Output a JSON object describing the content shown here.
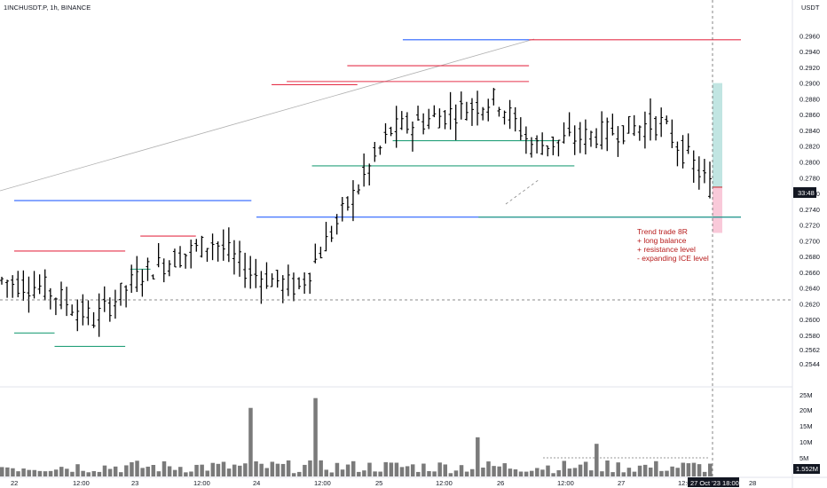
{
  "header": {
    "symbol": "1INCHUSDT.P, 1h, BINANCE",
    "currency": "USDT"
  },
  "badges": {
    "price": "33:48",
    "volume": "1.552M",
    "time": "27 Oct '23  18:00"
  },
  "annotation": [
    "Trend trade 8R",
    "+ long balance",
    "+ resistance level",
    "- expanding ICE level"
  ],
  "colors": {
    "resistance": "#e5334b",
    "support": "#26a17b",
    "trend": "#2962ff",
    "bar": "#000000",
    "volume": "#7a7a7a",
    "target_zone": "#b2dfdb",
    "stop_zone": "#f8bbd0"
  },
  "chart_data": {
    "type": "ohlc",
    "ylim": [
      0.2544,
      0.2975
    ],
    "y_ticks": [
      "0.2960",
      "0.2940",
      "0.2920",
      "0.2900",
      "0.2880",
      "0.2860",
      "0.2840",
      "0.2820",
      "0.2800",
      "0.2780",
      "0.2760",
      "0.2740",
      "0.2720",
      "0.2700",
      "0.2680",
      "0.2660",
      "0.2640",
      "0.2620",
      "0.2600",
      "0.2580",
      "0.2562",
      "0.2544"
    ],
    "x_ticks": [
      "22",
      "12:00",
      "23",
      "12:00",
      "24",
      "12:00",
      "25",
      "12:00",
      "26",
      "12:00",
      "27",
      "12:00",
      "28"
    ],
    "volume_ticks": [
      "25M",
      "20M",
      "15M",
      "10M",
      "5M"
    ],
    "levels": [
      {
        "kind": "resistance",
        "price": 0.2955,
        "from": "26 06:00",
        "to": "28 00:00"
      },
      {
        "kind": "resistance",
        "price": 0.2922,
        "from": "24 18:00",
        "to": "26 06:00"
      },
      {
        "kind": "resistance",
        "price": 0.2902,
        "from": "24 06:00",
        "to": "26 06:00"
      },
      {
        "kind": "resistance",
        "price": 0.2898,
        "from": "24 03:00",
        "to": "24 20:00"
      },
      {
        "kind": "resistance",
        "price": 0.2706,
        "from": "23 01:00",
        "to": "23 12:00"
      },
      {
        "kind": "resistance",
        "price": 0.2687,
        "from": "22 00:00",
        "to": "22 22:00"
      },
      {
        "kind": "trend_resistance",
        "price": 0.2955,
        "from": "25 05:00",
        "to": "26 06:00"
      },
      {
        "kind": "trend_resistance",
        "price": 0.2751,
        "from": "22 00:00",
        "to": "22 08:00"
      },
      {
        "kind": "trend_resistance",
        "price": 0.2751,
        "from": "22 08:00",
        "to": "23 23:00"
      },
      {
        "kind": "trend_resistance",
        "price": 0.273,
        "from": "24 00:00",
        "to": "28 00:00"
      },
      {
        "kind": "support",
        "price": 0.2827,
        "from": "25 03:00",
        "to": "26 12:00"
      },
      {
        "kind": "support",
        "price": 0.2795,
        "from": "24 11:00",
        "to": "26 15:00"
      },
      {
        "kind": "support",
        "price": 0.273,
        "from": "25 20:00",
        "to": "28 00:00"
      },
      {
        "kind": "support",
        "price": 0.2664,
        "from": "22 23:00",
        "to": "23 03:00"
      },
      {
        "kind": "support",
        "price": 0.2583,
        "from": "22 00:00",
        "to": "22 08:00"
      },
      {
        "kind": "support",
        "price": 0.2566,
        "from": "22 08:00",
        "to": "22 22:00"
      }
    ],
    "position": {
      "entry": 0.2768,
      "target": 0.29,
      "stop": 0.271
    }
  }
}
